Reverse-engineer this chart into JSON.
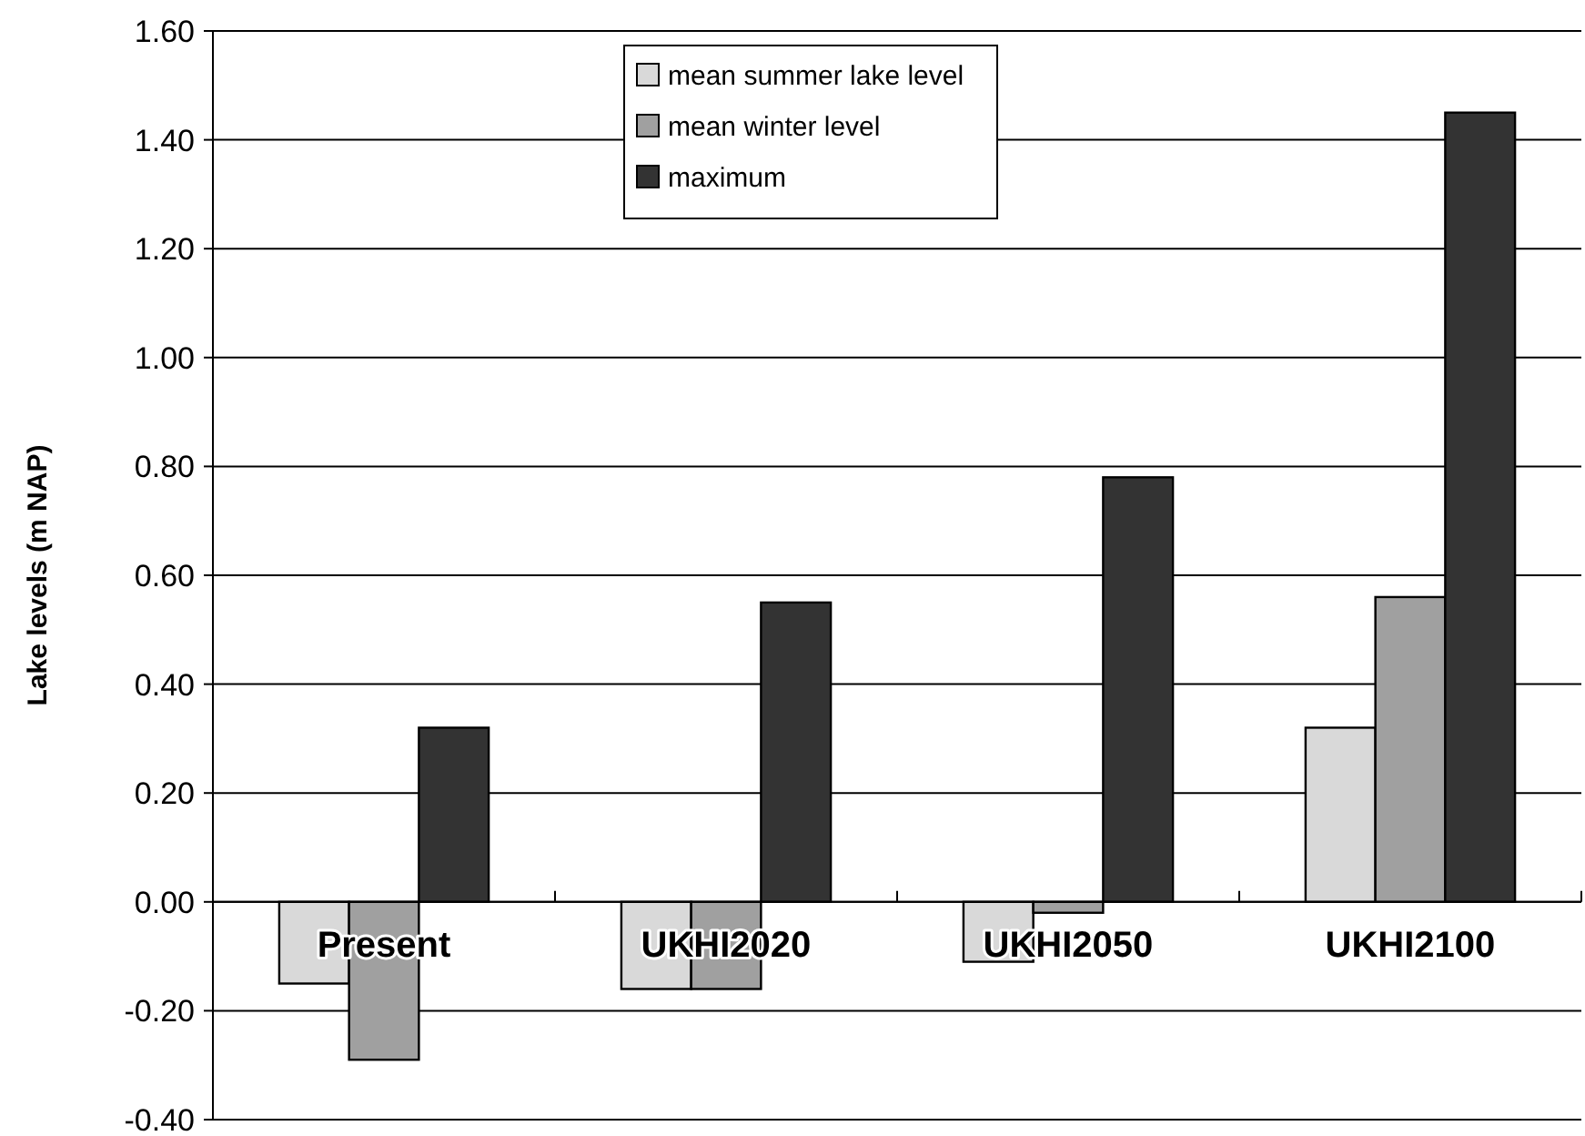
{
  "chart_data": {
    "type": "bar",
    "ylabel": "Lake levels (m NAP)",
    "categories": [
      "Present",
      "UKHI2020",
      "UKHI2050",
      "UKHI2100"
    ],
    "series": [
      {
        "name": "mean summer lake level",
        "color": "#d9d9d9",
        "values": [
          -0.15,
          -0.16,
          -0.11,
          0.32
        ]
      },
      {
        "name": "mean winter level",
        "color": "#a0a0a0",
        "values": [
          -0.29,
          -0.16,
          -0.02,
          0.56
        ]
      },
      {
        "name": "maximum",
        "color": "#333333",
        "values": [
          0.32,
          0.55,
          0.78,
          1.45
        ]
      }
    ],
    "ylim": [
      -0.4,
      1.6
    ],
    "yticks": [
      {
        "value": -0.4,
        "label": "-0.40"
      },
      {
        "value": -0.2,
        "label": "-0.20"
      },
      {
        "value": 0,
        "label": "0.00"
      },
      {
        "value": 0.2,
        "label": "0.20"
      },
      {
        "value": 0.4,
        "label": "0.40"
      },
      {
        "value": 0.6,
        "label": "0.60"
      },
      {
        "value": 0.8,
        "label": "0.80"
      },
      {
        "value": 1,
        "label": "1.00"
      },
      {
        "value": 1.2,
        "label": "1.20"
      },
      {
        "value": 1.4,
        "label": "1.40"
      },
      {
        "value": 1.6,
        "label": "1.60"
      }
    ],
    "grid": "y",
    "legend": "top"
  }
}
